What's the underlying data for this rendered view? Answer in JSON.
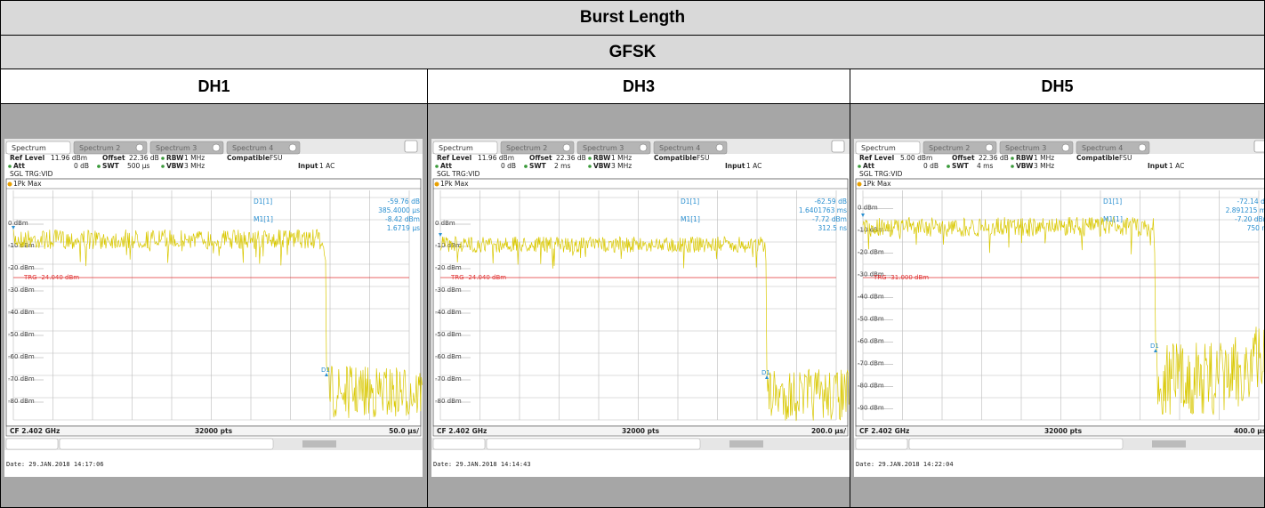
{
  "header": {
    "title": "Burst Length",
    "subtitle": "GFSK"
  },
  "labels": {
    "ref": "Ref Level",
    "offset": "Offset",
    "rbw": "RBW",
    "compat": "Compatible",
    "att": "Att",
    "swt": "SWT",
    "vbw": "VBW",
    "input": "Input"
  },
  "tabs": [
    "Spectrum",
    "Spectrum 2",
    "Spectrum 3",
    "Spectrum 4"
  ],
  "columns": [
    {
      "label": "DH1",
      "screen": {
        "ref": "11.96 dBm",
        "offset": "22.36 dB",
        "rbw": "1 MHz",
        "compat": "FSU",
        "att": "0 dB",
        "swt": "500 µs",
        "vbw": "3 MHz",
        "input": "1 AC",
        "mode": "SGL TRG:VID",
        "trace": "1Pk Max",
        "markers": [
          {
            "name": "D1[1]",
            "value": "-59.76 dB",
            "time": "385.4000 µs"
          },
          {
            "name": "M1[1]",
            "value": "-8.42 dBm",
            "time": "1.6719 µs"
          }
        ],
        "y_labels": [
          "0 dBm",
          "-10 dBm",
          "-20 dBm",
          "-30 dBm",
          "-40 dBm",
          "-50 dBm",
          "-60 dBm",
          "-70 dBm",
          "-80 dBm"
        ],
        "trg": "TRG -24.040 dBm",
        "tag": "D1",
        "cf": "CF 2.402 GHz",
        "pts": "32000 pts",
        "span": "50.0 µs/",
        "date": "Date: 29.JAN.2018  14:17:06"
      }
    },
    {
      "label": "DH3",
      "screen": {
        "ref": "11.96 dBm",
        "offset": "22.36 dB",
        "rbw": "1 MHz",
        "compat": "FSU",
        "att": "0 dB",
        "swt": "2 ms",
        "vbw": "3 MHz",
        "input": "1 AC",
        "mode": "SGL TRG:VID",
        "trace": "1Pk Max",
        "markers": [
          {
            "name": "D1[1]",
            "value": "-62.59 dB",
            "time": "1.6401763 ms"
          },
          {
            "name": "M1[1]",
            "value": "-7.72 dBm",
            "time": "312.5 ns"
          }
        ],
        "y_labels": [
          "0 dBm",
          "-10 dBm",
          "-20 dBm",
          "-30 dBm",
          "-40 dBm",
          "-50 dBm",
          "-60 dBm",
          "-70 dBm",
          "-80 dBm"
        ],
        "trg": "TRG -24.040 dBm",
        "tag": "D1",
        "cf": "CF 2.402 GHz",
        "pts": "32000 pts",
        "span": "200.0 µs/",
        "date": "Date: 29.JAN.2018  14:14:43"
      }
    },
    {
      "label": "DH5",
      "screen": {
        "ref": "5.00 dBm",
        "offset": "22.36 dB",
        "rbw": "1 MHz",
        "compat": "FSU",
        "att": "0 dB",
        "swt": "4 ms",
        "vbw": "3 MHz",
        "input": "1 AC",
        "mode": "SGL TRG:VID",
        "trace": "1Pk Max",
        "markers": [
          {
            "name": "D1[1]",
            "value": "-72.14 dB",
            "time": "2.891215 ms"
          },
          {
            "name": "M1[1]",
            "value": "-7.20 dBm",
            "time": "750 ns"
          }
        ],
        "y_labels": [
          "0 dBm",
          "-10 dBm",
          "-20 dBm",
          "-30 dBm",
          "-40 dBm",
          "-50 dBm",
          "-60 dBm",
          "-70 dBm",
          "-80 dBm",
          "-90 dBm"
        ],
        "trg": "TRG -31.000 dBm",
        "tag": "D1",
        "cf": "CF 2.402 GHz",
        "pts": "32000 pts",
        "span": "400.0 µs/",
        "date": "Date: 29.JAN.2018  14:22:04"
      }
    }
  ]
}
